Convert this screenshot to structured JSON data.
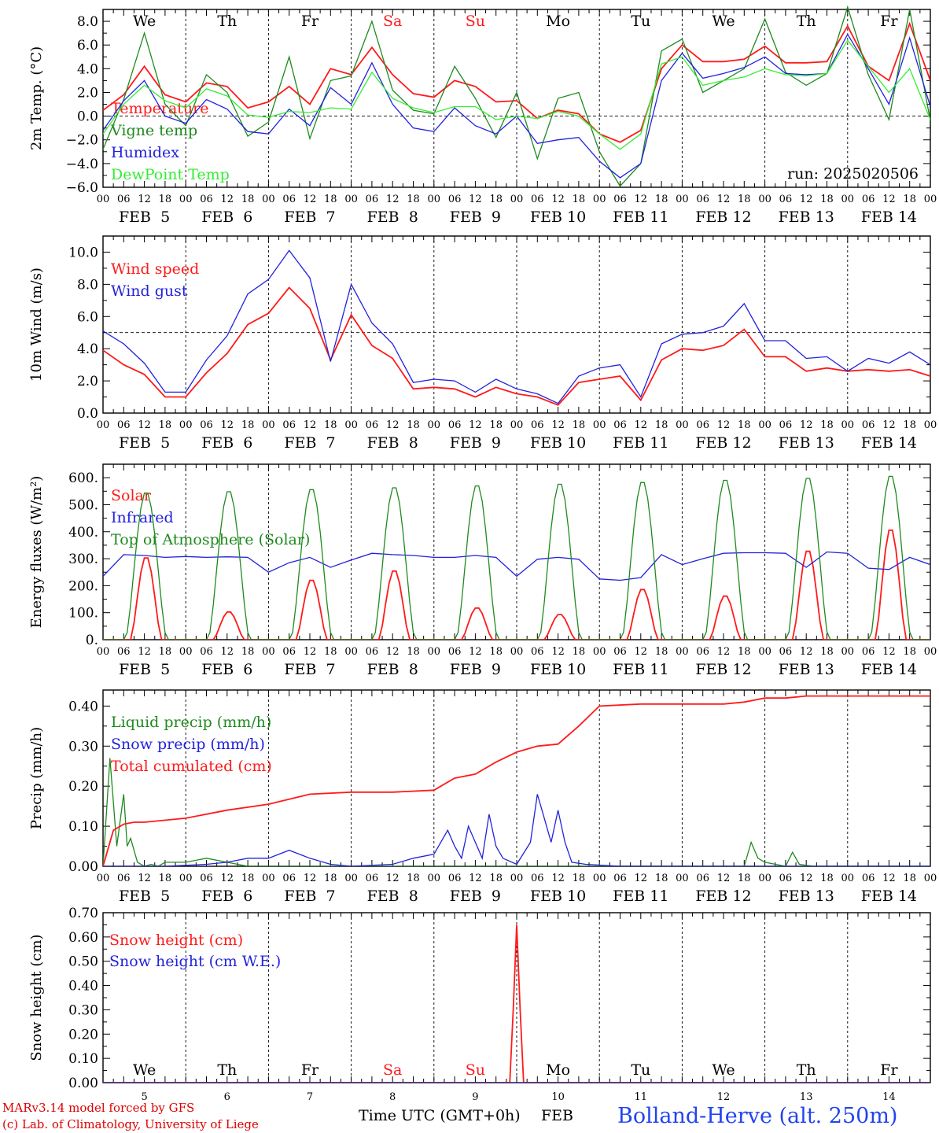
{
  "colors": {
    "red": "#ff1a1a",
    "green": "#1f8a1f",
    "blue": "#2222dd",
    "lightgreen": "#33ee33",
    "black": "#000000",
    "footer_red": "#dd0000",
    "station_blue": "#2244ee"
  },
  "days": [
    "We",
    "Th",
    "Fr",
    "Sa",
    "Su",
    "Mo",
    "Tu",
    "We",
    "Th",
    "Fr"
  ],
  "weekend_days": [
    "Sa",
    "Su"
  ],
  "date_labels": [
    "FEB  5",
    "FEB  6",
    "FEB  7",
    "FEB  8",
    "FEB  9",
    "FEB 10",
    "FEB 11",
    "FEB 12",
    "FEB 13",
    "FEB 14"
  ],
  "hour_labels": [
    "00",
    "06",
    "12",
    "18"
  ],
  "final_hour_label": "00",
  "day_numbers": [
    "5",
    "6",
    "7",
    "8",
    "9",
    "10",
    "11",
    "12",
    "13",
    "14"
  ],
  "run_label": "run: 2025020506",
  "footer": {
    "line1": "MARv3.14 model forced by GFS",
    "line2": "(c) Lab. of Climatology, University of Liege",
    "xaxis_title": "Time UTC (GMT+0h)",
    "month": "FEB",
    "station": "Bolland-Herve (alt. 250m)"
  },
  "chart_data": [
    {
      "type": "line",
      "ylabel": "2m Temp. (°C)",
      "ylim": [
        -6,
        9
      ],
      "yticks": [
        "8.0",
        "6.0",
        "4.0",
        "2.0",
        "0.0",
        "−2.0",
        "−4.0",
        "−6.0"
      ],
      "reference_line": 0,
      "x_unit": "hours since FEB 5 00 UTC",
      "series": [
        {
          "name": "Temperature",
          "color": "red",
          "x": [
            0,
            6,
            12,
            18,
            24,
            30,
            36,
            42,
            48,
            54,
            60,
            66,
            72,
            78,
            84,
            90,
            96,
            102,
            108,
            114,
            120,
            126,
            132,
            138,
            144,
            150,
            156,
            162,
            168,
            174,
            180,
            186,
            192,
            198,
            204,
            210,
            216,
            222,
            228,
            234,
            240
          ],
          "y": [
            0.5,
            1.8,
            4.2,
            1.8,
            1.2,
            2.8,
            2.5,
            0.7,
            1.2,
            2.5,
            1.0,
            4.0,
            3.5,
            5.8,
            3.5,
            1.9,
            1.6,
            3.0,
            2.5,
            1.2,
            1.3,
            -0.2,
            0.5,
            0.2,
            -1.5,
            -2.2,
            -1.2,
            4.0,
            6.0,
            4.6,
            4.6,
            4.8,
            5.9,
            4.5,
            4.5,
            4.6,
            7.6,
            4.2,
            3.0,
            7.8,
            3.0
          ]
        },
        {
          "name": "Vigne temp",
          "color": "green",
          "x": [
            0,
            6,
            12,
            18,
            24,
            30,
            36,
            42,
            48,
            54,
            60,
            66,
            72,
            78,
            84,
            90,
            96,
            102,
            108,
            114,
            120,
            126,
            132,
            138,
            144,
            150,
            156,
            162,
            168,
            174,
            180,
            186,
            192,
            198,
            204,
            210,
            216,
            222,
            228,
            234,
            240
          ],
          "y": [
            -2.8,
            1.4,
            7.0,
            1.0,
            -0.8,
            3.5,
            2.0,
            -1.7,
            -0.5,
            5.0,
            -1.9,
            3.0,
            3.4,
            8.0,
            2.2,
            0.5,
            0.2,
            4.2,
            1.5,
            -1.8,
            2.0,
            -3.6,
            1.5,
            2.0,
            -3.0,
            -5.9,
            -4.0,
            5.5,
            6.5,
            2.0,
            3.0,
            4.0,
            8.2,
            3.7,
            2.6,
            3.6,
            9.2,
            3.5,
            -0.3,
            9.0,
            -0.4
          ]
        },
        {
          "name": "Humidex",
          "color": "blue",
          "x": [
            0,
            6,
            12,
            18,
            24,
            30,
            36,
            42,
            48,
            54,
            60,
            66,
            72,
            78,
            84,
            90,
            96,
            102,
            108,
            114,
            120,
            126,
            132,
            138,
            144,
            150,
            156,
            162,
            168,
            174,
            180,
            186,
            192,
            198,
            204,
            210,
            216,
            222,
            228,
            234,
            240
          ],
          "y": [
            -1.2,
            1.3,
            3.0,
            0.0,
            -0.6,
            1.4,
            0.6,
            -1.3,
            -1.5,
            0.6,
            -0.8,
            2.4,
            1.0,
            4.5,
            1.0,
            -1.0,
            -1.3,
            0.7,
            -0.8,
            -1.5,
            0.0,
            -2.3,
            -2.0,
            -1.8,
            -3.8,
            -5.2,
            -4.0,
            3.0,
            5.3,
            3.2,
            3.6,
            4.1,
            5.0,
            3.6,
            3.5,
            3.6,
            6.9,
            4.0,
            1.0,
            6.6,
            0.8
          ]
        },
        {
          "name": "DewPoint Temp",
          "color": "lightgreen",
          "x": [
            0,
            6,
            12,
            18,
            24,
            30,
            36,
            42,
            48,
            54,
            60,
            66,
            72,
            78,
            84,
            90,
            96,
            102,
            108,
            114,
            120,
            126,
            132,
            138,
            144,
            150,
            156,
            162,
            168,
            174,
            180,
            186,
            192,
            198,
            204,
            210,
            216,
            222,
            228,
            234,
            240
          ],
          "y": [
            -1.5,
            1.0,
            2.6,
            1.3,
            0.7,
            2.3,
            1.7,
            0.1,
            -0.1,
            0.4,
            0.3,
            0.7,
            0.6,
            3.7,
            1.5,
            0.7,
            0.3,
            0.8,
            0.8,
            -0.3,
            0.0,
            -0.2,
            0.4,
            0.0,
            -1.5,
            -2.8,
            -1.5,
            4.4,
            5.0,
            2.6,
            3.0,
            3.3,
            4.0,
            3.5,
            3.4,
            3.6,
            6.4,
            4.2,
            2.0,
            4.0,
            -0.3
          ]
        }
      ]
    },
    {
      "type": "line",
      "ylabel": "10m Wind (m/s)",
      "ylim": [
        0,
        11
      ],
      "yticks": [
        "10.0",
        "8.0",
        "6.0",
        "4.0",
        "2.0",
        "0.0"
      ],
      "reference_line": 5,
      "x_unit": "hours since FEB 5 00 UTC",
      "series": [
        {
          "name": "Wind speed",
          "color": "red",
          "x": [
            0,
            6,
            12,
            18,
            24,
            30,
            36,
            42,
            48,
            54,
            60,
            66,
            72,
            78,
            84,
            90,
            96,
            102,
            108,
            114,
            120,
            126,
            132,
            138,
            144,
            150,
            156,
            162,
            168,
            174,
            180,
            186,
            192,
            198,
            204,
            210,
            216,
            222,
            228,
            234,
            240
          ],
          "y": [
            3.9,
            3.0,
            2.4,
            1.0,
            1.0,
            2.5,
            3.7,
            5.5,
            6.2,
            7.8,
            6.5,
            3.3,
            6.1,
            4.2,
            3.4,
            1.5,
            1.6,
            1.5,
            1.0,
            1.6,
            1.2,
            1.0,
            0.5,
            1.9,
            2.1,
            2.3,
            0.8,
            3.3,
            4.0,
            3.9,
            4.2,
            5.2,
            3.5,
            3.5,
            2.6,
            2.8,
            2.6,
            2.7,
            2.6,
            2.7,
            2.3
          ]
        },
        {
          "name": "Wind gust",
          "color": "blue",
          "x": [
            0,
            6,
            12,
            18,
            24,
            30,
            36,
            42,
            48,
            54,
            60,
            66,
            72,
            78,
            84,
            90,
            96,
            102,
            108,
            114,
            120,
            126,
            132,
            138,
            144,
            150,
            156,
            162,
            168,
            174,
            180,
            186,
            192,
            198,
            204,
            210,
            216,
            222,
            228,
            234,
            240
          ],
          "y": [
            5.1,
            4.3,
            3.1,
            1.3,
            1.3,
            3.3,
            4.8,
            7.4,
            8.3,
            10.1,
            8.4,
            3.2,
            8.0,
            5.6,
            4.3,
            1.9,
            2.1,
            2.0,
            1.3,
            2.1,
            1.5,
            1.2,
            0.6,
            2.3,
            2.8,
            3.0,
            1.0,
            4.3,
            4.9,
            5.0,
            5.4,
            6.8,
            4.5,
            4.5,
            3.4,
            3.5,
            2.6,
            3.4,
            3.1,
            3.8,
            3.0
          ]
        }
      ]
    },
    {
      "type": "line",
      "ylabel": "Energy fluxes (W/m²)",
      "ylim": [
        0,
        650
      ],
      "yticks": [
        "600.",
        "500.",
        "400.",
        "300.",
        "200.",
        "100.",
        "0."
      ],
      "x_unit": "hours since FEB 5 00 UTC",
      "solar_peaks_by_day": [
        310,
        105,
        225,
        260,
        120,
        95,
        190,
        165,
        335,
        415
      ],
      "toa_peaks_by_day": [
        550,
        555,
        563,
        570,
        577,
        583,
        590,
        598,
        605,
        613
      ],
      "series": [
        {
          "name": "Solar",
          "color": "red",
          "profile": "daily_bell",
          "width_hours": 9,
          "peaks": "solar_peaks_by_day"
        },
        {
          "name": "Infrared",
          "color": "blue",
          "x": [
            0,
            6,
            12,
            18,
            24,
            30,
            36,
            42,
            48,
            54,
            60,
            66,
            72,
            78,
            84,
            90,
            96,
            102,
            108,
            114,
            120,
            126,
            132,
            138,
            144,
            150,
            156,
            162,
            168,
            174,
            180,
            186,
            192,
            198,
            204,
            210,
            216,
            222,
            228,
            234,
            240
          ],
          "y": [
            235,
            315,
            312,
            305,
            308,
            305,
            307,
            305,
            250,
            285,
            305,
            268,
            295,
            320,
            315,
            312,
            305,
            305,
            312,
            305,
            235,
            298,
            305,
            298,
            225,
            220,
            230,
            315,
            278,
            300,
            320,
            322,
            322,
            320,
            268,
            325,
            320,
            265,
            260,
            305,
            278
          ]
        },
        {
          "name": "Top of Atmosphere (Solar)",
          "color": "green",
          "profile": "daily_bell",
          "width_hours": 12,
          "peaks": "toa_peaks_by_day"
        }
      ]
    },
    {
      "type": "line",
      "ylabel": "Precip (mm/h)",
      "ylim": [
        0,
        0.44
      ],
      "yticks": [
        "0.40",
        "0.30",
        "0.20",
        "0.10",
        "0.00"
      ],
      "x_unit": "hours since FEB 5 00 UTC",
      "series": [
        {
          "name": "Liquid precip (mm/h)",
          "color": "green",
          "x": [
            0,
            2,
            4,
            6,
            7,
            8,
            9,
            10,
            12,
            14,
            16,
            18,
            24,
            30,
            36,
            42,
            48,
            54,
            60,
            66,
            72,
            96,
            120,
            132,
            150,
            168,
            186,
            188,
            190,
            192,
            198,
            200,
            202,
            206,
            210,
            240
          ],
          "y": [
            0,
            0.27,
            0.05,
            0.18,
            0.05,
            0.07,
            0.04,
            0.01,
            0,
            0.005,
            0,
            0.01,
            0.01,
            0.02,
            0.01,
            0,
            0,
            0,
            0,
            0,
            0,
            0,
            0,
            0,
            0,
            0,
            0,
            0.06,
            0.02,
            0.01,
            0,
            0.035,
            0.005,
            0,
            0,
            0
          ]
        },
        {
          "name": "Snow precip (mm/h)",
          "color": "blue",
          "x": [
            0,
            18,
            30,
            36,
            42,
            48,
            54,
            60,
            66,
            72,
            84,
            90,
            96,
            100,
            102,
            104,
            106,
            108,
            110,
            112,
            114,
            116,
            120,
            124,
            126,
            128,
            130,
            132,
            134,
            136,
            140,
            150,
            160,
            170,
            180,
            200,
            210,
            240
          ],
          "y": [
            0,
            0,
            0.005,
            0.01,
            0.02,
            0.02,
            0.04,
            0.02,
            0.005,
            0,
            0.005,
            0.02,
            0.03,
            0.09,
            0.05,
            0.02,
            0.1,
            0.06,
            0.02,
            0.13,
            0.05,
            0.02,
            0.005,
            0.06,
            0.18,
            0.12,
            0.06,
            0.14,
            0.06,
            0.01,
            0.005,
            0,
            0,
            0,
            0,
            0,
            0,
            0
          ]
        },
        {
          "name": "Total cumulated (cm)",
          "color": "red",
          "x": [
            0,
            3,
            6,
            9,
            12,
            24,
            36,
            48,
            60,
            72,
            84,
            96,
            102,
            108,
            114,
            120,
            126,
            132,
            138,
            144,
            156,
            168,
            180,
            186,
            192,
            198,
            204,
            240
          ],
          "y": [
            0,
            0.09,
            0.105,
            0.11,
            0.11,
            0.12,
            0.14,
            0.155,
            0.18,
            0.185,
            0.185,
            0.19,
            0.22,
            0.23,
            0.26,
            0.285,
            0.3,
            0.305,
            0.35,
            0.4,
            0.405,
            0.405,
            0.405,
            0.41,
            0.42,
            0.42,
            0.425,
            0.425
          ]
        }
      ]
    },
    {
      "type": "line",
      "ylabel": "Snow height (cm)",
      "ylim": [
        0,
        0.7
      ],
      "yticks": [
        "0.70",
        "0.60",
        "0.50",
        "0.40",
        "0.30",
        "0.20",
        "0.10",
        "0.00"
      ],
      "x_unit": "hours since FEB 5 00 UTC",
      "series": [
        {
          "name": "Snow height (cm)",
          "color": "red",
          "x": [
            0,
            116,
            118,
            119,
            120,
            121,
            122,
            124,
            240
          ],
          "y": [
            0,
            0,
            0,
            0.3,
            0.65,
            0.3,
            0,
            0,
            0
          ]
        },
        {
          "name": "Snow height (cm W.E.)",
          "color": "blue",
          "x": [
            0,
            240
          ],
          "y": [
            0,
            0
          ]
        }
      ]
    }
  ]
}
